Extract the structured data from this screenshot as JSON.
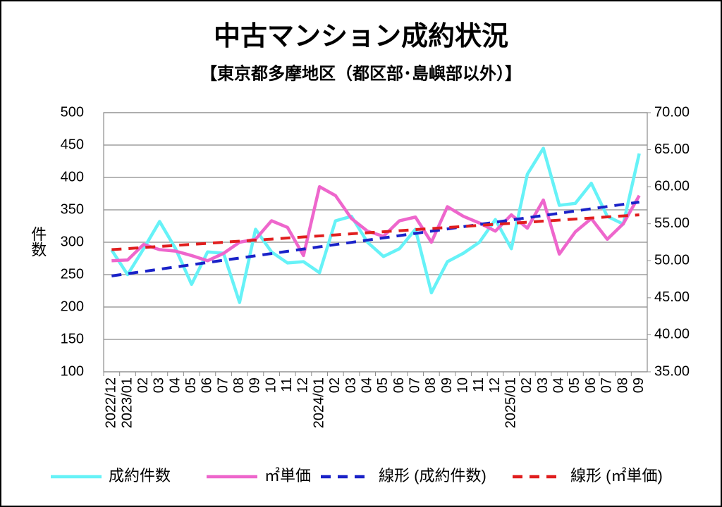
{
  "chart_data": {
    "type": "line",
    "title": "中古マンション成約状況",
    "subtitle": "【東京都多摩地区（都区部･島嶼部以外）】",
    "y_label": "件数",
    "categories": [
      "2022/12",
      "2023/01",
      "02",
      "03",
      "04",
      "05",
      "06",
      "07",
      "08",
      "09",
      "10",
      "11",
      "12",
      "2024/01",
      "02",
      "03",
      "04",
      "05",
      "06",
      "07",
      "08",
      "09",
      "10",
      "11",
      "12",
      "2025/01",
      "02",
      "03",
      "04",
      "05",
      "06",
      "07",
      "08",
      "09"
    ],
    "ylim": [
      100,
      500
    ],
    "yticks": [
      100,
      150,
      200,
      250,
      300,
      350,
      400,
      450,
      500
    ],
    "y2lim": [
      35,
      70
    ],
    "y2ticks": [
      {
        "value": 35,
        "label": "35.00"
      },
      {
        "value": 40,
        "label": "40.00"
      },
      {
        "value": 45,
        "label": "45.00"
      },
      {
        "value": 50,
        "label": "50.00"
      },
      {
        "value": 55,
        "label": "55.00"
      },
      {
        "value": 60,
        "label": "60.00"
      },
      {
        "value": 65,
        "label": "65.00"
      },
      {
        "value": 70,
        "label": "70.00"
      }
    ],
    "grid": true,
    "legend": "bottom",
    "series": [
      {
        "name": "成約件数",
        "color": "#66f2f7",
        "dashed": false,
        "values": [
          288,
          250,
          290,
          332,
          290,
          235,
          285,
          283,
          207,
          320,
          285,
          268,
          270,
          253,
          333,
          340,
          300,
          278,
          290,
          320,
          222,
          270,
          283,
          300,
          335,
          290,
          405,
          445,
          357,
          360,
          391,
          340,
          328,
          437
        ]
      },
      {
        "name": "㎡単価",
        "color": "#ee66cc",
        "dashed": false,
        "axis": "y2",
        "values": [
          50.0,
          50.1,
          52.2,
          51.5,
          51.3,
          50.7,
          50.0,
          51.0,
          52.5,
          52.9,
          55.4,
          54.5,
          50.7,
          60.0,
          58.8,
          55.7,
          54.0,
          53.3,
          55.4,
          55.9,
          52.5,
          57.3,
          56.0,
          55.1,
          54.0,
          56.2,
          54.4,
          58.2,
          50.9,
          53.9,
          55.7,
          52.9,
          55.0,
          58.8
        ]
      },
      {
        "name": "線形 (成約件数)",
        "color": "#1a22c8",
        "dashed": true,
        "values": [
          248.0,
          251.5,
          254.9,
          258.4,
          261.8,
          265.3,
          268.7,
          272.2,
          275.6,
          279.1,
          282.5,
          286.0,
          289.5,
          292.9,
          296.4,
          299.8,
          303.3,
          306.7,
          310.2,
          313.6,
          317.1,
          320.5,
          324.0,
          327.5,
          330.9,
          334.4,
          337.8,
          341.3,
          344.7,
          348.2,
          351.6,
          355.1,
          358.5,
          362.0
        ]
      },
      {
        "name": "線形 (㎡単価)",
        "color": "#e01e1e",
        "dashed": true,
        "axis": "y2",
        "values": [
          51.5,
          51.64,
          51.78,
          51.93,
          52.07,
          52.21,
          52.35,
          52.5,
          52.64,
          52.78,
          52.92,
          53.07,
          53.21,
          53.35,
          53.49,
          53.64,
          53.78,
          53.92,
          54.06,
          54.21,
          54.35,
          54.49,
          54.63,
          54.78,
          54.92,
          55.06,
          55.2,
          55.35,
          55.49,
          55.63,
          55.77,
          55.92,
          56.06,
          56.2
        ]
      }
    ]
  }
}
